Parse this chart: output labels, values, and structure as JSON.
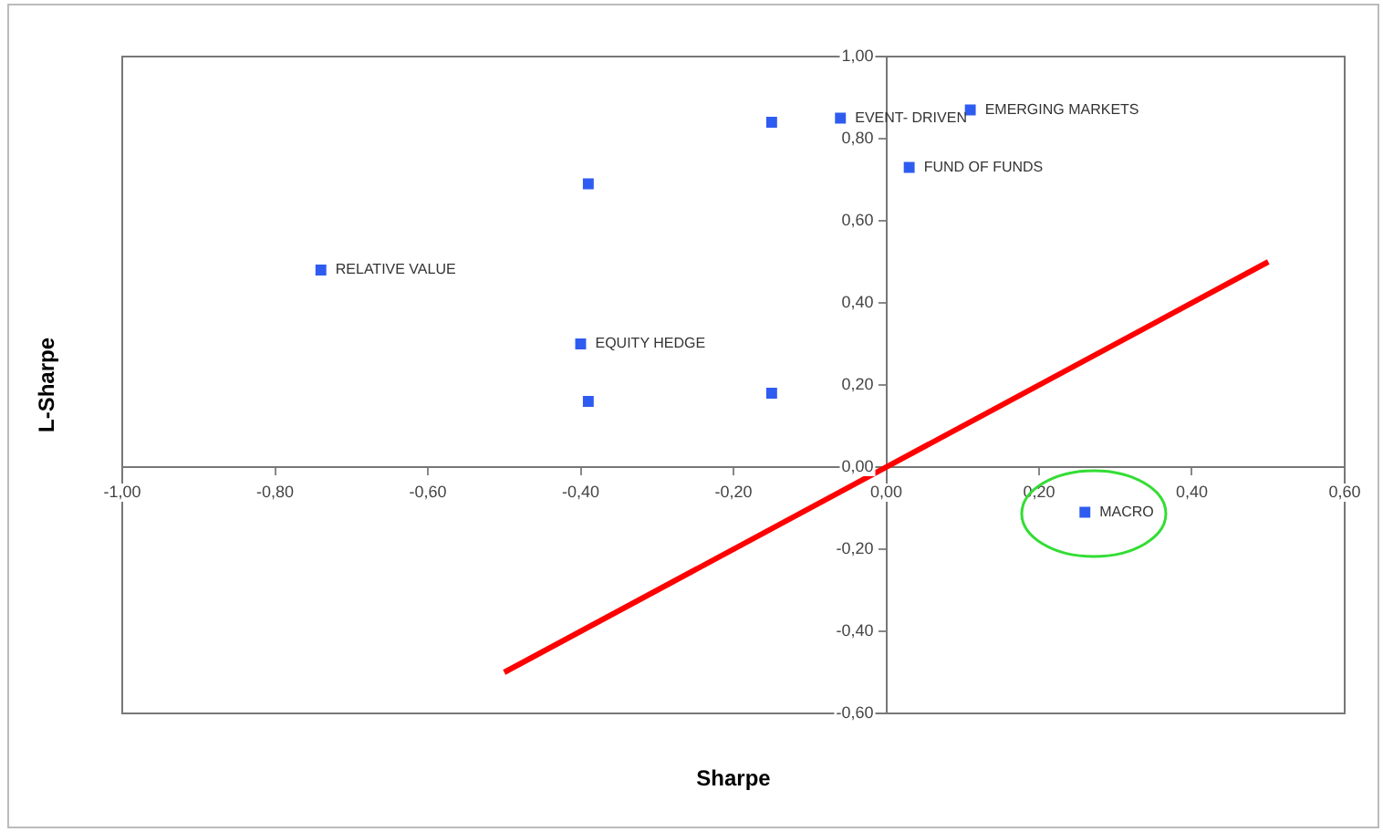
{
  "chart_data": {
    "type": "scatter",
    "xlabel": "Sharpe",
    "ylabel": "L-Sharpe",
    "xlim": [
      -1,
      0.6
    ],
    "xticks": [
      {
        "value": -1,
        "label": "-1,00"
      },
      {
        "value": -0.8,
        "label": "-0,80"
      },
      {
        "value": -0.6,
        "label": "-0,60"
      },
      {
        "value": -0.4,
        "label": "-0,40"
      },
      {
        "value": -0.2,
        "label": "-0,20"
      },
      {
        "value": 0,
        "label": "0,00"
      },
      {
        "value": 0.2,
        "label": "0,20"
      },
      {
        "value": 0.4,
        "label": "0,40"
      },
      {
        "value": 0.6,
        "label": "0,60"
      }
    ],
    "ylim": [
      -0.6,
      1
    ],
    "yticks": [
      {
        "value": -0.6,
        "label": "-0,60"
      },
      {
        "value": -0.4,
        "label": "-0,40"
      },
      {
        "value": -0.2,
        "label": "-0,20"
      },
      {
        "value": 0,
        "label": "0,00"
      },
      {
        "value": 0.2,
        "label": "0,20"
      },
      {
        "value": 0.4,
        "label": "0,40"
      },
      {
        "value": 0.6,
        "label": "0,60"
      },
      {
        "value": 0.8,
        "label": "0,80"
      },
      {
        "value": 1,
        "label": "1,00"
      }
    ],
    "series": [
      {
        "type": "scatter",
        "color": "#2f5cf0",
        "marker": "square",
        "x": [
          -0.74,
          -0.39,
          -0.15,
          -0.06,
          0.11,
          0.03,
          -0.4,
          -0.39,
          -0.15,
          0.26
        ],
        "values": [
          0.48,
          0.69,
          0.84,
          0.85,
          0.87,
          0.73,
          0.3,
          0.16,
          0.18,
          -0.11
        ]
      },
      {
        "type": "line",
        "color": "#ff0000",
        "marker": "none",
        "line_style": "solid",
        "x": [
          -0.5,
          0.5
        ],
        "values": [
          -0.5,
          0.5
        ]
      }
    ],
    "annotations": [
      {
        "text": "RELATIVE VALUE",
        "x": -0.74,
        "y": 0.48
      },
      {
        "text": "EVENT- DRIVEN",
        "x": -0.06,
        "y": 0.85
      },
      {
        "text": "EMERGING MARKETS",
        "x": 0.11,
        "y": 0.87
      },
      {
        "text": "FUND OF FUNDS",
        "x": 0.03,
        "y": 0.73
      },
      {
        "text": "EQUITY HEDGE",
        "x": -0.4,
        "y": 0.3
      },
      {
        "text": "MACRO",
        "x": 0.26,
        "y": -0.11
      }
    ],
    "grid": false,
    "legend": false
  }
}
